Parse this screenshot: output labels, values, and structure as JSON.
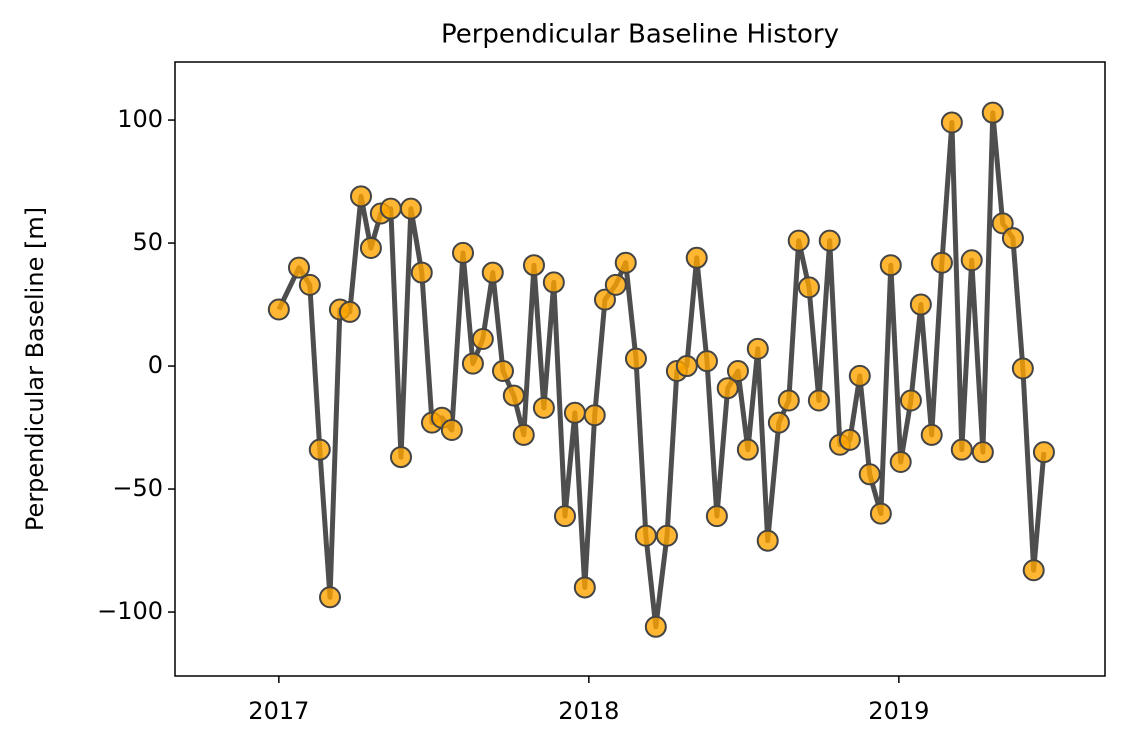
{
  "chart_data": {
    "type": "line",
    "title": "Perpendicular Baseline History",
    "ylabel": "Perpendicular Baseline [m]",
    "x": [
      2017.0,
      2017.065,
      2017.1,
      2017.132,
      2017.165,
      2017.197,
      2017.229,
      2017.265,
      2017.297,
      2017.329,
      2017.361,
      2017.394,
      2017.426,
      2017.461,
      2017.494,
      2017.526,
      2017.558,
      2017.594,
      2017.626,
      2017.658,
      2017.69,
      2017.723,
      2017.758,
      2017.79,
      2017.823,
      2017.855,
      2017.887,
      2017.923,
      2017.955,
      2017.987,
      2018.019,
      2018.052,
      2018.087,
      2018.119,
      2018.152,
      2018.184,
      2018.216,
      2018.252,
      2018.284,
      2018.316,
      2018.348,
      2018.381,
      2018.413,
      2018.448,
      2018.481,
      2018.513,
      2018.545,
      2018.577,
      2018.613,
      2018.645,
      2018.677,
      2018.71,
      2018.742,
      2018.777,
      2018.81,
      2018.842,
      2018.874,
      2018.906,
      2018.942,
      2018.974,
      2019.006,
      2019.039,
      2019.071,
      2019.106,
      2019.139,
      2019.171,
      2019.203,
      2019.235,
      2019.271,
      2019.303,
      2019.335,
      2019.368,
      2019.4,
      2019.435,
      2019.468
    ],
    "series": [
      {
        "color": "#444444",
        "marker_color": "#ffa500",
        "values": [
          23,
          40,
          33,
          -34,
          -94,
          23,
          22,
          69,
          48,
          62,
          64,
          -37,
          64,
          38,
          -23,
          -21,
          -26,
          46,
          1,
          11,
          38,
          -2,
          -12,
          -28,
          41,
          -17,
          34,
          -61,
          -19,
          -90,
          -20,
          27,
          33,
          42,
          3,
          -69,
          -106,
          -69,
          -2,
          0,
          44,
          2,
          -61,
          -9,
          -2,
          -34,
          7,
          -71,
          -23,
          -14,
          51,
          32,
          -14,
          51,
          -32,
          -30,
          -4,
          -44,
          -60,
          41,
          -39,
          -14,
          25,
          -28,
          42,
          99,
          -34,
          43,
          -35,
          103,
          58,
          52,
          -1,
          -83,
          -35
        ]
      }
    ],
    "xlim": [
      2016.665,
      2019.665
    ],
    "xticks": [
      2017,
      2018,
      2019
    ],
    "ylim": [
      -126,
      123.6
    ],
    "yticks": [
      {
        "value": -100,
        "label": "−100"
      },
      {
        "value": -50,
        "label": "−50"
      },
      0,
      50,
      100
    ],
    "grid": false
  }
}
